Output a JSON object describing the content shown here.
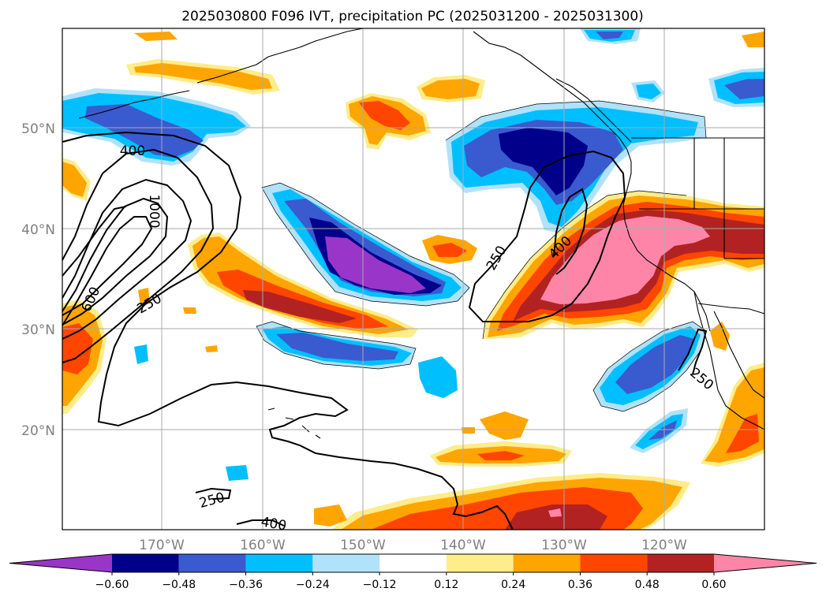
{
  "title": "2025030800 F096 IVT, precipitation PC (2025031200 - 2025031300)",
  "lat_labels": [
    "50°N",
    "40°N",
    "30°N",
    "20°N"
  ],
  "lon_labels": [
    "170°W",
    "160°W",
    "150°W",
    "140°W",
    "130°W",
    "120°W"
  ],
  "contour_labels": [
    "400",
    "1000",
    "600",
    "250",
    "250",
    "400",
    "250",
    "250",
    "400"
  ],
  "colorbar": {
    "ticks": [
      "−0.60",
      "−0.48",
      "−0.36",
      "−0.24",
      "−0.12",
      "0.12",
      "0.24",
      "0.36",
      "0.48",
      "0.60"
    ],
    "colors": [
      "#9a35c9",
      "#00008b",
      "#3a5ad0",
      "#00bfff",
      "#b0e2fa",
      "#ffffff",
      "#ffec8a",
      "#ffa500",
      "#ff4500",
      "#b22222",
      "#ff85a8"
    ]
  },
  "colors": {
    "purple": "#9a35c9",
    "navy": "#00008b",
    "royal_blue": "#3a5ad0",
    "deep_sky_blue": "#00bfff",
    "light_blue": "#b0e2fa",
    "light_yellow": "#ffec8a",
    "orange": "#ffa500",
    "orange_red": "#ff4500",
    "firebrick": "#b22222",
    "pink": "#ff85a8"
  }
}
